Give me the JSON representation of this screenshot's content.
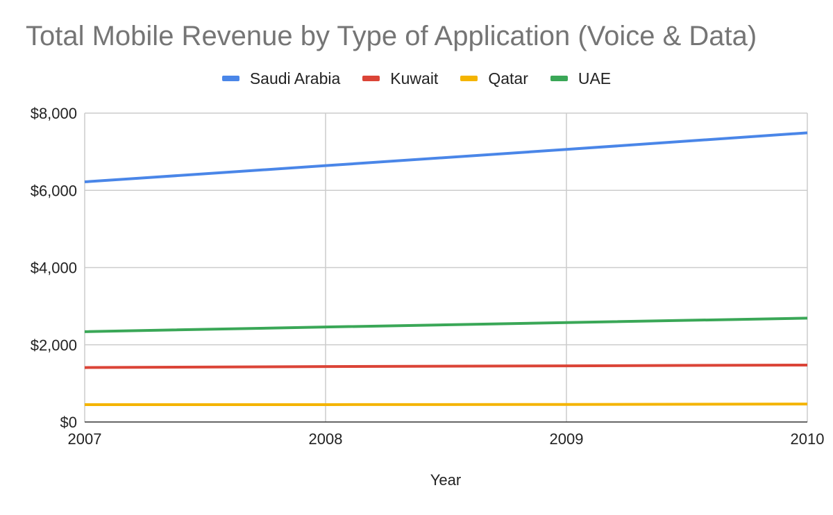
{
  "chart_data": {
    "type": "line",
    "title": "Total Mobile Revenue by Type of Application (Voice & Data)",
    "xlabel": "Year",
    "ylabel": "",
    "x": [
      "2007",
      "2008",
      "2009",
      "2010"
    ],
    "ylim": [
      0,
      8000
    ],
    "yticks": [
      0,
      2000,
      4000,
      6000,
      8000
    ],
    "ytick_labels": [
      "$0",
      "$2,000",
      "$4,000",
      "$6,000",
      "$8,000"
    ],
    "grid": true,
    "legend_position": "top",
    "series": [
      {
        "name": "Saudi Arabia",
        "color": "#4a86e8",
        "values": [
          6220,
          6640,
          7060,
          7490
        ]
      },
      {
        "name": "Kuwait",
        "color": "#db4437",
        "values": [
          1410,
          1435,
          1455,
          1475
        ]
      },
      {
        "name": "Qatar",
        "color": "#f4b400",
        "values": [
          450,
          450,
          455,
          465
        ]
      },
      {
        "name": "UAE",
        "color": "#3aa757",
        "values": [
          2340,
          2460,
          2575,
          2690
        ]
      }
    ]
  }
}
